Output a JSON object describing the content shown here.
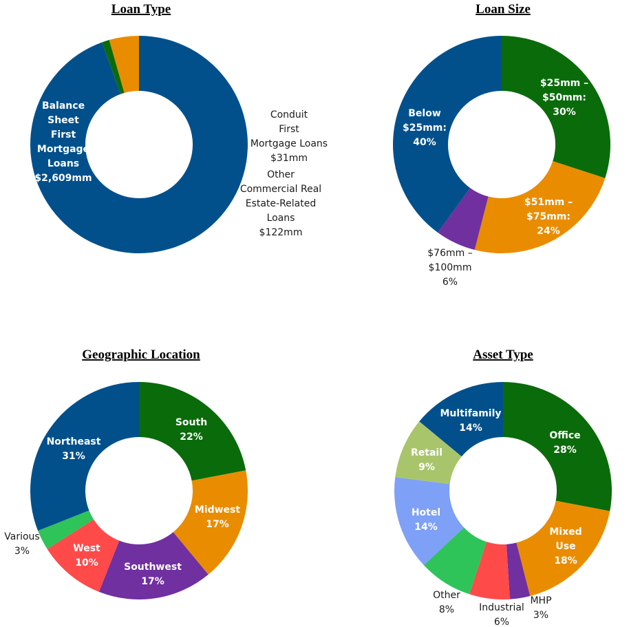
{
  "chart_data": [
    {
      "type": "pie",
      "title": "Loan Type",
      "series": [
        {
          "categories": [
            "Balance Sheet First Mortgage Loans",
            "Conduit First Mortgage Loans",
            "Other Commercial Real Estate-Related Loans"
          ],
          "values": [
            2609,
            31,
            122
          ],
          "units": "mm"
        }
      ],
      "labels": [
        [
          "Balance",
          "Sheet",
          "First",
          "Mortgage",
          "Loans",
          "$2,609mm"
        ],
        [
          "Conduit",
          "First",
          "Mortgage Loans",
          "$31mm"
        ],
        [
          "Other",
          "Commercial Real",
          "Estate-Related",
          "Loans",
          "$122mm"
        ]
      ],
      "colors": [
        "#01508C",
        "#0A6B0A",
        "#EA8C00"
      ]
    },
    {
      "type": "pie",
      "title": "Loan Size",
      "series": [
        {
          "categories": [
            "$25mm – $50mm",
            "$51mm – $75mm",
            "$76mm – $100mm",
            "Below $25mm"
          ],
          "values": [
            30,
            24,
            6,
            40
          ],
          "units": "%"
        }
      ],
      "labels": [
        [
          "$25mm –",
          "$50mm:",
          "30%"
        ],
        [
          "$51mm –",
          "$75mm:",
          "24%"
        ],
        [
          "$76mm –",
          "$100mm",
          "6%"
        ],
        [
          "Below",
          "$25mm:",
          "40%"
        ]
      ],
      "colors": [
        "#0A6B0A",
        "#EA8C00",
        "#7030A0",
        "#01508C"
      ]
    },
    {
      "type": "pie",
      "title": "Geographic Location",
      "series": [
        {
          "categories": [
            "South",
            "Midwest",
            "Southwest",
            "West",
            "Various",
            "Northeast"
          ],
          "values": [
            22,
            17,
            17,
            10,
            3,
            31
          ],
          "units": "%"
        }
      ],
      "labels": [
        [
          "South",
          "22%"
        ],
        [
          "Midwest",
          "17%"
        ],
        [
          "Southwest",
          "17%"
        ],
        [
          "West",
          "10%"
        ],
        [
          "Various",
          "3%"
        ],
        [
          "Northeast",
          "31%"
        ]
      ],
      "colors": [
        "#0A6B0A",
        "#EA8C00",
        "#7030A0",
        "#FF4A4A",
        "#2EC45A",
        "#01508C"
      ]
    },
    {
      "type": "pie",
      "title": "Asset Type",
      "series": [
        {
          "categories": [
            "Office",
            "Mixed Use",
            "MHP",
            "Industrial",
            "Other",
            "Hotel",
            "Retail",
            "Multifamily"
          ],
          "values": [
            28,
            18,
            3,
            6,
            8,
            14,
            9,
            14
          ],
          "units": "%"
        }
      ],
      "labels": [
        [
          "Office",
          "28%"
        ],
        [
          "Mixed",
          "Use",
          "18%"
        ],
        [
          "MHP",
          "3%"
        ],
        [
          "Industrial",
          "6%"
        ],
        [
          "Other",
          "8%"
        ],
        [
          "Hotel",
          "14%"
        ],
        [
          "Retail",
          "9%"
        ],
        [
          "Multifamily",
          "14%"
        ]
      ],
      "colors": [
        "#0A6B0A",
        "#EA8C00",
        "#7030A0",
        "#FF4A4A",
        "#2EC45A",
        "#7EA1F7",
        "#A9C56C",
        "#01508C"
      ]
    }
  ]
}
